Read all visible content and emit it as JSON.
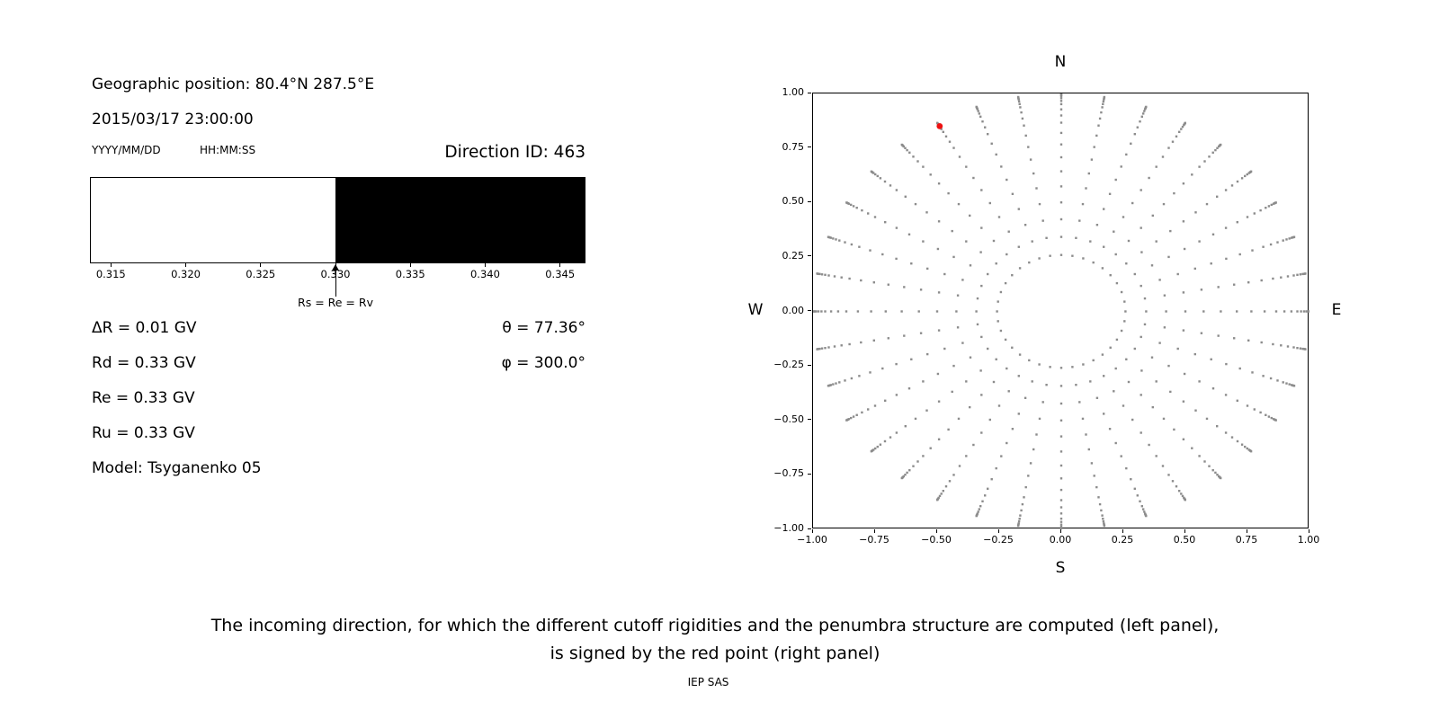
{
  "info_panel": {
    "geographic_position": "Geographic position: 80.4°N 287.5°E",
    "datetime": "2015/03/17 23:00:00",
    "date_format_label": "YYYY/MM/DD",
    "time_format_label": "HH:MM:SS",
    "direction_id": "Direction ID: 463",
    "parameters": [
      "ΔR = 0.01 GV",
      "Rd = 0.33 GV",
      "Re = 0.33 GV",
      "Ru = 0.33 GV",
      "Model: Tsyganenko 05"
    ],
    "theta": "θ = 77.36°",
    "phi": "φ = 300.0°"
  },
  "caption": {
    "line1": "The incoming direction, for which the different cutoff rigidities and the penumbra structure are computed (left panel),",
    "line2": "is signed by the red point (right panel)",
    "credit": "IEP SAS"
  },
  "chart_data": [
    {
      "id": "penumbra",
      "type": "bar",
      "title": "",
      "xlabel": "",
      "xlim": [
        0.3136,
        0.3467
      ],
      "allowed_region": {
        "from": 0.3136,
        "to": 0.33,
        "color": "#ffffff"
      },
      "forbidden_region": {
        "from": 0.33,
        "to": 0.3467,
        "color": "#000000"
      },
      "xticks": [
        0.315,
        0.32,
        0.325,
        0.33,
        0.335,
        0.34,
        0.345
      ],
      "xtick_labels": [
        "0.315",
        "0.320",
        "0.325",
        "0.330",
        "0.335",
        "0.340",
        "0.345"
      ],
      "arrow": {
        "x": 0.33,
        "label": "Rs = Re = Rv"
      },
      "units": "GV"
    },
    {
      "id": "directions",
      "type": "scatter",
      "title": "",
      "xlim": [
        -1.0,
        1.0
      ],
      "ylim": [
        -1.0,
        1.0
      ],
      "xtick_labels": [
        "−1.00",
        "−0.75",
        "−0.50",
        "−0.25",
        "0.00",
        "0.25",
        "0.50",
        "0.75",
        "1.00"
      ],
      "ytick_labels": [
        "1.00",
        "0.75",
        "0.50",
        "0.25",
        "0.00",
        "−0.25",
        "−0.50",
        "−0.75",
        "−1.00"
      ],
      "compass": {
        "north": "N",
        "south": "S",
        "east": "E",
        "west": "W"
      },
      "grid_points": {
        "description": "incoming-direction grid: radial spokes every 10 deg azimuth, radius = sin(zenith)",
        "azimuth_step_deg": 10,
        "azimuth_count": 36,
        "zenith_angles_deg": [
          15,
          20,
          25,
          30,
          35,
          40,
          45,
          50,
          55,
          60,
          64,
          68,
          72,
          75,
          78,
          81,
          83,
          85,
          87
        ],
        "radius_mapping": "sin(zenith)",
        "marker": "square",
        "color": "#8c8c8c"
      },
      "selected_point": {
        "x": -0.49,
        "y": 0.85,
        "color": "#ee1111",
        "label": "selected incoming direction"
      }
    }
  ]
}
